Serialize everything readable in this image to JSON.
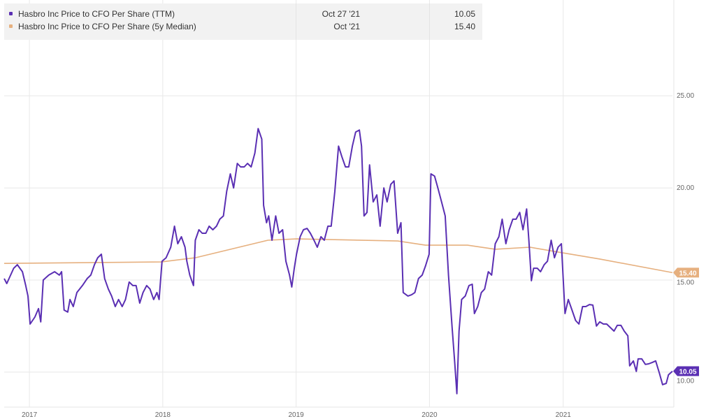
{
  "legend": {
    "rows": [
      {
        "name": "Hasbro Inc Price to CFO Per Share (TTM)",
        "date": "Oct 27 '21",
        "value": "10.05",
        "color": "#5a2fb3"
      },
      {
        "name": "Hasbro Inc Price to CFO Per Share (5y Median)",
        "date": "Oct '21",
        "value": "15.40",
        "color": "#e6b07f"
      }
    ]
  },
  "chart_data": {
    "type": "line",
    "title": "",
    "xlabel": "",
    "ylabel": "",
    "xlim": [
      "2016-10-24",
      "2021-10-27"
    ],
    "ylim": [
      8.1,
      30.2
    ],
    "grid": true,
    "y_axis_side": "right",
    "x_ticks": [
      {
        "label": "2017",
        "date": "2017-01-01"
      },
      {
        "label": "2018",
        "date": "2018-01-01"
      },
      {
        "label": "2019",
        "date": "2019-01-01"
      },
      {
        "label": "2020",
        "date": "2020-01-01"
      },
      {
        "label": "2021",
        "date": "2021-01-01"
      }
    ],
    "y_ticks": [
      {
        "label": "25.00",
        "value": 25
      },
      {
        "label": "20.00",
        "value": 20
      },
      {
        "label": "15.00",
        "value": 15
      },
      {
        "label": "10.00",
        "value": 10
      }
    ],
    "series": [
      {
        "name": "Hasbro Inc Price to CFO Per Share (TTM)",
        "color": "#5a2fb3",
        "last_label": "10.05",
        "points": [
          [
            "2016-10-24",
            15.08
          ],
          [
            "2016-10-31",
            14.81
          ],
          [
            "2016-11-19",
            15.64
          ],
          [
            "2016-11-29",
            15.83
          ],
          [
            "2016-12-13",
            15.45
          ],
          [
            "2016-12-22",
            14.7
          ],
          [
            "2016-12-28",
            14.13
          ],
          [
            "2017-01-03",
            12.61
          ],
          [
            "2017-01-16",
            12.99
          ],
          [
            "2017-01-26",
            13.45
          ],
          [
            "2017-02-01",
            12.73
          ],
          [
            "2017-02-08",
            15.0
          ],
          [
            "2017-02-23",
            15.27
          ],
          [
            "2017-03-11",
            15.45
          ],
          [
            "2017-03-24",
            15.27
          ],
          [
            "2017-03-30",
            15.45
          ],
          [
            "2017-04-06",
            13.37
          ],
          [
            "2017-04-16",
            13.26
          ],
          [
            "2017-04-22",
            13.94
          ],
          [
            "2017-05-01",
            13.56
          ],
          [
            "2017-05-11",
            14.32
          ],
          [
            "2017-05-26",
            14.7
          ],
          [
            "2017-06-08",
            15.08
          ],
          [
            "2017-06-18",
            15.27
          ],
          [
            "2017-06-28",
            15.83
          ],
          [
            "2017-07-07",
            16.21
          ],
          [
            "2017-07-17",
            16.4
          ],
          [
            "2017-07-26",
            15.08
          ],
          [
            "2017-08-05",
            14.51
          ],
          [
            "2017-08-14",
            14.13
          ],
          [
            "2017-08-24",
            13.56
          ],
          [
            "2017-09-02",
            13.94
          ],
          [
            "2017-09-12",
            13.56
          ],
          [
            "2017-09-21",
            13.94
          ],
          [
            "2017-10-01",
            14.89
          ],
          [
            "2017-10-11",
            14.7
          ],
          [
            "2017-10-20",
            14.7
          ],
          [
            "2017-10-30",
            13.75
          ],
          [
            "2017-11-08",
            14.32
          ],
          [
            "2017-11-18",
            14.7
          ],
          [
            "2017-11-27",
            14.51
          ],
          [
            "2017-12-07",
            13.94
          ],
          [
            "2017-12-16",
            14.32
          ],
          [
            "2017-12-22",
            13.94
          ],
          [
            "2017-12-30",
            16.02
          ],
          [
            "2018-01-10",
            16.21
          ],
          [
            "2018-01-23",
            16.78
          ],
          [
            "2018-02-02",
            17.92
          ],
          [
            "2018-02-11",
            16.97
          ],
          [
            "2018-02-21",
            17.35
          ],
          [
            "2018-03-03",
            16.78
          ],
          [
            "2018-03-08",
            16.02
          ],
          [
            "2018-03-16",
            15.27
          ],
          [
            "2018-03-26",
            14.7
          ],
          [
            "2018-03-31",
            17.16
          ],
          [
            "2018-04-10",
            17.73
          ],
          [
            "2018-04-19",
            17.54
          ],
          [
            "2018-04-29",
            17.54
          ],
          [
            "2018-05-08",
            17.92
          ],
          [
            "2018-05-18",
            17.73
          ],
          [
            "2018-05-28",
            17.92
          ],
          [
            "2018-06-06",
            18.3
          ],
          [
            "2018-06-16",
            18.48
          ],
          [
            "2018-06-25",
            19.81
          ],
          [
            "2018-07-05",
            20.76
          ],
          [
            "2018-07-14",
            20.0
          ],
          [
            "2018-07-24",
            21.33
          ],
          [
            "2018-08-02",
            21.14
          ],
          [
            "2018-08-12",
            21.14
          ],
          [
            "2018-08-21",
            21.33
          ],
          [
            "2018-08-31",
            21.14
          ],
          [
            "2018-09-10",
            21.89
          ],
          [
            "2018-09-19",
            23.22
          ],
          [
            "2018-09-29",
            22.65
          ],
          [
            "2018-10-04",
            19.05
          ],
          [
            "2018-10-12",
            18.11
          ],
          [
            "2018-10-18",
            18.48
          ],
          [
            "2018-10-27",
            17.16
          ],
          [
            "2018-11-06",
            18.48
          ],
          [
            "2018-11-15",
            17.54
          ],
          [
            "2018-11-25",
            17.73
          ],
          [
            "2018-12-04",
            16.02
          ],
          [
            "2018-12-14",
            15.27
          ],
          [
            "2018-12-20",
            14.62
          ],
          [
            "2018-12-27",
            15.64
          ],
          [
            "2019-01-02",
            16.4
          ],
          [
            "2019-01-12",
            17.35
          ],
          [
            "2019-01-21",
            17.73
          ],
          [
            "2019-01-31",
            17.8
          ],
          [
            "2019-02-09",
            17.54
          ],
          [
            "2019-02-19",
            17.16
          ],
          [
            "2019-02-28",
            16.78
          ],
          [
            "2019-03-10",
            17.35
          ],
          [
            "2019-03-19",
            17.16
          ],
          [
            "2019-03-29",
            17.92
          ],
          [
            "2019-04-07",
            17.92
          ],
          [
            "2019-04-17",
            19.81
          ],
          [
            "2019-04-27",
            22.27
          ],
          [
            "2019-05-06",
            21.7
          ],
          [
            "2019-05-16",
            21.14
          ],
          [
            "2019-05-25",
            21.14
          ],
          [
            "2019-06-04",
            22.27
          ],
          [
            "2019-06-13",
            23.03
          ],
          [
            "2019-06-23",
            23.14
          ],
          [
            "2019-06-29",
            22.27
          ],
          [
            "2019-07-06",
            18.48
          ],
          [
            "2019-07-14",
            18.67
          ],
          [
            "2019-07-21",
            21.25
          ],
          [
            "2019-07-31",
            19.24
          ],
          [
            "2019-08-10",
            19.62
          ],
          [
            "2019-08-19",
            17.92
          ],
          [
            "2019-08-29",
            20.0
          ],
          [
            "2019-09-07",
            19.24
          ],
          [
            "2019-09-17",
            20.19
          ],
          [
            "2019-09-26",
            20.38
          ],
          [
            "2019-10-06",
            17.54
          ],
          [
            "2019-10-15",
            18.11
          ],
          [
            "2019-10-21",
            14.32
          ],
          [
            "2019-11-03",
            14.13
          ],
          [
            "2019-11-13",
            14.2
          ],
          [
            "2019-11-22",
            14.32
          ],
          [
            "2019-12-02",
            15.08
          ],
          [
            "2019-12-12",
            15.27
          ],
          [
            "2019-12-21",
            15.76
          ],
          [
            "2019-12-31",
            16.4
          ],
          [
            "2020-01-05",
            20.76
          ],
          [
            "2020-01-15",
            20.64
          ],
          [
            "2020-01-24",
            20.0
          ],
          [
            "2020-02-03",
            19.24
          ],
          [
            "2020-02-13",
            18.48
          ],
          [
            "2020-02-22",
            15.27
          ],
          [
            "2020-03-03",
            12.42
          ],
          [
            "2020-03-10",
            10.53
          ],
          [
            "2020-03-16",
            8.83
          ],
          [
            "2020-03-22",
            12.23
          ],
          [
            "2020-03-29",
            13.94
          ],
          [
            "2020-04-08",
            14.13
          ],
          [
            "2020-04-18",
            14.7
          ],
          [
            "2020-04-27",
            14.77
          ],
          [
            "2020-05-03",
            13.18
          ],
          [
            "2020-05-12",
            13.56
          ],
          [
            "2020-05-22",
            14.32
          ],
          [
            "2020-05-31",
            14.51
          ],
          [
            "2020-06-10",
            15.45
          ],
          [
            "2020-06-19",
            15.27
          ],
          [
            "2020-06-29",
            16.97
          ],
          [
            "2020-07-09",
            17.35
          ],
          [
            "2020-07-18",
            18.3
          ],
          [
            "2020-07-28",
            16.97
          ],
          [
            "2020-08-06",
            17.73
          ],
          [
            "2020-08-16",
            18.3
          ],
          [
            "2020-08-25",
            18.3
          ],
          [
            "2020-09-04",
            18.67
          ],
          [
            "2020-09-13",
            17.73
          ],
          [
            "2020-09-23",
            18.86
          ],
          [
            "2020-09-29",
            17.16
          ],
          [
            "2020-10-06",
            14.96
          ],
          [
            "2020-10-12",
            15.64
          ],
          [
            "2020-10-22",
            15.64
          ],
          [
            "2020-10-31",
            15.45
          ],
          [
            "2020-11-10",
            15.83
          ],
          [
            "2020-11-19",
            16.02
          ],
          [
            "2020-11-29",
            17.16
          ],
          [
            "2020-12-08",
            16.21
          ],
          [
            "2020-12-18",
            16.78
          ],
          [
            "2020-12-27",
            16.97
          ],
          [
            "2021-01-06",
            13.18
          ],
          [
            "2021-01-15",
            13.94
          ],
          [
            "2021-01-25",
            13.37
          ],
          [
            "2021-02-04",
            12.8
          ],
          [
            "2021-02-13",
            12.61
          ],
          [
            "2021-02-23",
            13.56
          ],
          [
            "2021-03-04",
            13.56
          ],
          [
            "2021-03-14",
            13.67
          ],
          [
            "2021-03-23",
            13.64
          ],
          [
            "2021-04-02",
            12.5
          ],
          [
            "2021-04-11",
            12.73
          ],
          [
            "2021-04-21",
            12.61
          ],
          [
            "2021-04-30",
            12.61
          ],
          [
            "2021-05-10",
            12.42
          ],
          [
            "2021-05-20",
            12.23
          ],
          [
            "2021-05-29",
            12.54
          ],
          [
            "2021-06-08",
            12.54
          ],
          [
            "2021-06-17",
            12.23
          ],
          [
            "2021-06-27",
            11.97
          ],
          [
            "2021-07-02",
            10.34
          ],
          [
            "2021-07-12",
            10.61
          ],
          [
            "2021-07-20",
            10.04
          ],
          [
            "2021-07-25",
            10.72
          ],
          [
            "2021-08-04",
            10.72
          ],
          [
            "2021-08-14",
            10.42
          ],
          [
            "2021-08-23",
            10.45
          ],
          [
            "2021-09-02",
            10.53
          ],
          [
            "2021-09-11",
            10.61
          ],
          [
            "2021-09-21",
            9.96
          ],
          [
            "2021-09-30",
            9.32
          ],
          [
            "2021-10-10",
            9.39
          ],
          [
            "2021-10-16",
            9.85
          ],
          [
            "2021-10-27",
            10.05
          ]
        ]
      },
      {
        "name": "Hasbro Inc Price to CFO Per Share (5y Median)",
        "color": "#e6b07f",
        "last_label": "15.40",
        "points": [
          [
            "2016-10-24",
            15.9
          ],
          [
            "2017-12-28",
            15.98
          ],
          [
            "2018-03-31",
            16.21
          ],
          [
            "2018-10-16",
            17.16
          ],
          [
            "2019-01-02",
            17.23
          ],
          [
            "2019-10-06",
            17.12
          ],
          [
            "2019-12-21",
            16.89
          ],
          [
            "2020-04-14",
            16.89
          ],
          [
            "2020-06-29",
            16.67
          ],
          [
            "2020-10-02",
            16.78
          ],
          [
            "2020-12-18",
            16.52
          ],
          [
            "2021-04-11",
            16.14
          ],
          [
            "2021-10-27",
            15.4
          ]
        ]
      }
    ]
  }
}
